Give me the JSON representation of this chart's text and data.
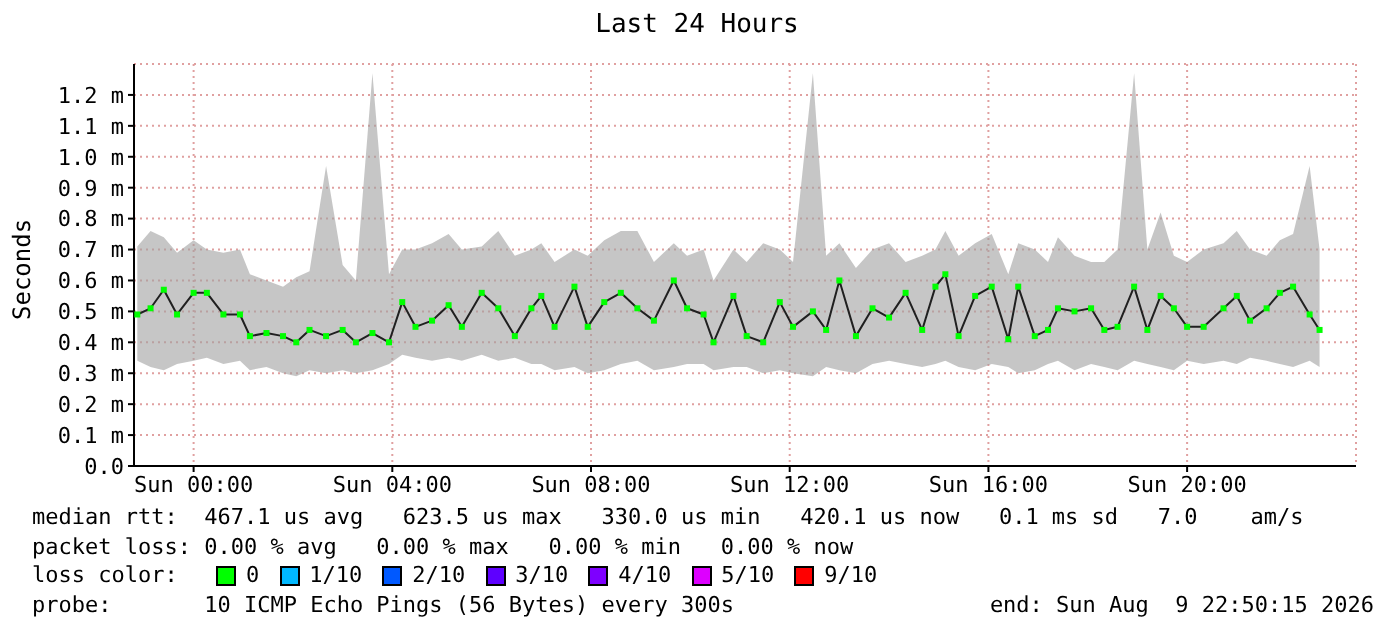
{
  "chart_data": {
    "type": "line",
    "title": "Last 24 Hours",
    "ylabel": "Seconds",
    "legend_title": "loss color:",
    "legend": "bottom",
    "grid": true,
    "marker": "square",
    "x": [
      "2026-08-08T22:52",
      "2026-08-08T23:08",
      "2026-08-08T23:24",
      "2026-08-08T23:40",
      "2026-08-09T00:00",
      "2026-08-09T00:16",
      "2026-08-09T00:36",
      "2026-08-09T00:56",
      "2026-08-09T01:08",
      "2026-08-09T01:28",
      "2026-08-09T01:48",
      "2026-08-09T02:04",
      "2026-08-09T02:20",
      "2026-08-09T02:40",
      "2026-08-09T03:00",
      "2026-08-09T03:16",
      "2026-08-09T03:36",
      "2026-08-09T03:56",
      "2026-08-09T04:12",
      "2026-08-09T04:28",
      "2026-08-09T04:48",
      "2026-08-09T05:08",
      "2026-08-09T05:24",
      "2026-08-09T05:48",
      "2026-08-09T06:08",
      "2026-08-09T06:28",
      "2026-08-09T06:48",
      "2026-08-09T07:00",
      "2026-08-09T07:16",
      "2026-08-09T07:40",
      "2026-08-09T07:56",
      "2026-08-09T08:16",
      "2026-08-09T08:36",
      "2026-08-09T08:56",
      "2026-08-09T09:16",
      "2026-08-09T09:40",
      "2026-08-09T09:56",
      "2026-08-09T10:16",
      "2026-08-09T10:28",
      "2026-08-09T10:52",
      "2026-08-09T11:08",
      "2026-08-09T11:28",
      "2026-08-09T11:48",
      "2026-08-09T12:04",
      "2026-08-09T12:28",
      "2026-08-09T12:44",
      "2026-08-09T13:00",
      "2026-08-09T13:20",
      "2026-08-09T13:40",
      "2026-08-09T14:00",
      "2026-08-09T14:20",
      "2026-08-09T14:40",
      "2026-08-09T14:56",
      "2026-08-09T15:08",
      "2026-08-09T15:24",
      "2026-08-09T15:44",
      "2026-08-09T16:04",
      "2026-08-09T16:24",
      "2026-08-09T16:36",
      "2026-08-09T16:56",
      "2026-08-09T17:12",
      "2026-08-09T17:24",
      "2026-08-09T17:44",
      "2026-08-09T18:04",
      "2026-08-09T18:20",
      "2026-08-09T18:36",
      "2026-08-09T18:56",
      "2026-08-09T19:12",
      "2026-08-09T19:28",
      "2026-08-09T19:44",
      "2026-08-09T20:00",
      "2026-08-09T20:20",
      "2026-08-09T20:44",
      "2026-08-09T21:00",
      "2026-08-09T21:16",
      "2026-08-09T21:36",
      "2026-08-09T21:52",
      "2026-08-09T22:08",
      "2026-08-09T22:28",
      "2026-08-09T22:40"
    ],
    "series": [
      {
        "name": "0",
        "color": "#00ff00",
        "values": [
          0.49,
          0.51,
          0.57,
          0.49,
          0.56,
          0.56,
          0.49,
          0.49,
          0.42,
          0.43,
          0.42,
          0.4,
          0.44,
          0.42,
          0.44,
          0.4,
          0.43,
          0.4,
          0.53,
          0.45,
          0.47,
          0.52,
          0.45,
          0.56,
          0.51,
          0.42,
          0.51,
          0.55,
          0.45,
          0.58,
          0.45,
          0.53,
          0.56,
          0.51,
          0.47,
          0.6,
          0.51,
          0.49,
          0.4,
          0.55,
          0.42,
          0.4,
          0.53,
          0.45,
          0.5,
          0.44,
          0.6,
          0.42,
          0.51,
          0.48,
          0.56,
          0.44,
          0.58,
          0.62,
          0.42,
          0.55,
          0.58,
          0.41,
          0.58,
          0.42,
          0.44,
          0.51,
          0.5,
          0.51,
          0.44,
          0.45,
          0.58,
          0.44,
          0.55,
          0.51,
          0.45,
          0.45,
          0.51,
          0.55,
          0.47,
          0.51,
          0.56,
          0.58,
          0.49,
          0.44
        ],
        "lower": [
          0.34,
          0.32,
          0.31,
          0.33,
          0.34,
          0.35,
          0.33,
          0.34,
          0.31,
          0.32,
          0.3,
          0.29,
          0.31,
          0.3,
          0.31,
          0.3,
          0.31,
          0.33,
          0.36,
          0.35,
          0.34,
          0.35,
          0.34,
          0.36,
          0.34,
          0.35,
          0.33,
          0.33,
          0.31,
          0.32,
          0.3,
          0.31,
          0.33,
          0.34,
          0.31,
          0.32,
          0.33,
          0.33,
          0.31,
          0.32,
          0.32,
          0.3,
          0.31,
          0.3,
          0.29,
          0.32,
          0.31,
          0.3,
          0.33,
          0.34,
          0.33,
          0.32,
          0.33,
          0.34,
          0.32,
          0.31,
          0.33,
          0.32,
          0.3,
          0.31,
          0.33,
          0.34,
          0.31,
          0.33,
          0.32,
          0.31,
          0.34,
          0.33,
          0.32,
          0.31,
          0.34,
          0.33,
          0.34,
          0.33,
          0.35,
          0.34,
          0.33,
          0.32,
          0.34,
          0.32
        ],
        "upper": [
          0.71,
          0.76,
          0.74,
          0.69,
          0.73,
          0.7,
          0.69,
          0.7,
          0.62,
          0.6,
          0.58,
          0.61,
          0.63,
          0.97,
          0.65,
          0.6,
          1.27,
          0.62,
          0.7,
          0.7,
          0.72,
          0.75,
          0.7,
          0.71,
          0.76,
          0.68,
          0.7,
          0.72,
          0.66,
          0.7,
          0.68,
          0.73,
          0.76,
          0.76,
          0.66,
          0.72,
          0.68,
          0.7,
          0.6,
          0.7,
          0.66,
          0.72,
          0.7,
          0.66,
          1.27,
          0.68,
          0.72,
          0.64,
          0.7,
          0.72,
          0.66,
          0.68,
          0.7,
          0.76,
          0.68,
          0.72,
          0.75,
          0.62,
          0.72,
          0.7,
          0.66,
          0.74,
          0.68,
          0.66,
          0.66,
          0.7,
          1.27,
          0.7,
          0.82,
          0.68,
          0.66,
          0.7,
          0.72,
          0.76,
          0.7,
          0.68,
          0.73,
          0.75,
          0.97,
          0.7
        ]
      },
      {
        "name": "1/10",
        "color": "#00b8ff",
        "values": [
          null,
          null,
          null,
          null,
          null,
          null,
          null,
          null,
          null,
          null,
          null,
          null,
          null,
          null,
          null,
          null,
          null,
          null,
          null,
          null,
          null,
          null,
          null,
          null,
          null,
          null,
          null,
          null,
          null,
          null,
          null,
          null,
          null,
          null,
          null,
          null,
          null,
          null,
          null,
          null,
          null,
          null,
          null,
          null,
          null,
          null,
          null,
          null,
          null,
          null,
          null,
          null,
          null,
          null,
          null,
          null,
          null,
          null,
          null,
          null,
          null,
          null,
          null,
          null,
          null,
          null,
          null,
          null,
          null,
          null,
          null,
          null,
          null,
          null,
          null,
          null,
          null,
          null,
          null,
          null
        ]
      },
      {
        "name": "2/10",
        "color": "#0059ff",
        "values": [
          null,
          null,
          null,
          null,
          null,
          null,
          null,
          null,
          null,
          null,
          null,
          null,
          null,
          null,
          null,
          null,
          null,
          null,
          null,
          null,
          null,
          null,
          null,
          null,
          null,
          null,
          null,
          null,
          null,
          null,
          null,
          null,
          null,
          null,
          null,
          null,
          null,
          null,
          null,
          null,
          null,
          null,
          null,
          null,
          null,
          null,
          null,
          null,
          null,
          null,
          null,
          null,
          null,
          null,
          null,
          null,
          null,
          null,
          null,
          null,
          null,
          null,
          null,
          null,
          null,
          null,
          null,
          null,
          null,
          null,
          null,
          null,
          null,
          null,
          null,
          null,
          null,
          null,
          null,
          null
        ]
      },
      {
        "name": "3/10",
        "color": "#5e00ff",
        "values": [
          null,
          null,
          null,
          null,
          null,
          null,
          null,
          null,
          null,
          null,
          null,
          null,
          null,
          null,
          null,
          null,
          null,
          null,
          null,
          null,
          null,
          null,
          null,
          null,
          null,
          null,
          null,
          null,
          null,
          null,
          null,
          null,
          null,
          null,
          null,
          null,
          null,
          null,
          null,
          null,
          null,
          null,
          null,
          null,
          null,
          null,
          null,
          null,
          null,
          null,
          null,
          null,
          null,
          null,
          null,
          null,
          null,
          null,
          null,
          null,
          null,
          null,
          null,
          null,
          null,
          null,
          null,
          null,
          null,
          null,
          null,
          null,
          null,
          null,
          null,
          null,
          null,
          null,
          null,
          null
        ]
      },
      {
        "name": "4/10",
        "color": "#7e00ff",
        "values": [
          null,
          null,
          null,
          null,
          null,
          null,
          null,
          null,
          null,
          null,
          null,
          null,
          null,
          null,
          null,
          null,
          null,
          null,
          null,
          null,
          null,
          null,
          null,
          null,
          null,
          null,
          null,
          null,
          null,
          null,
          null,
          null,
          null,
          null,
          null,
          null,
          null,
          null,
          null,
          null,
          null,
          null,
          null,
          null,
          null,
          null,
          null,
          null,
          null,
          null,
          null,
          null,
          null,
          null,
          null,
          null,
          null,
          null,
          null,
          null,
          null,
          null,
          null,
          null,
          null,
          null,
          null,
          null,
          null,
          null,
          null,
          null,
          null,
          null,
          null,
          null,
          null,
          null,
          null,
          null
        ]
      },
      {
        "name": "5/10",
        "color": "#dd00ff",
        "values": [
          null,
          null,
          null,
          null,
          null,
          null,
          null,
          null,
          null,
          null,
          null,
          null,
          null,
          null,
          null,
          null,
          null,
          null,
          null,
          null,
          null,
          null,
          null,
          null,
          null,
          null,
          null,
          null,
          null,
          null,
          null,
          null,
          null,
          null,
          null,
          null,
          null,
          null,
          null,
          null,
          null,
          null,
          null,
          null,
          null,
          null,
          null,
          null,
          null,
          null,
          null,
          null,
          null,
          null,
          null,
          null,
          null,
          null,
          null,
          null,
          null,
          null,
          null,
          null,
          null,
          null,
          null,
          null,
          null,
          null,
          null,
          null,
          null,
          null,
          null,
          null,
          null,
          null,
          null,
          null
        ]
      },
      {
        "name": "9/10",
        "color": "#ff0000",
        "values": [
          null,
          null,
          null,
          null,
          null,
          null,
          null,
          null,
          null,
          null,
          null,
          null,
          null,
          null,
          null,
          null,
          null,
          null,
          null,
          null,
          null,
          null,
          null,
          null,
          null,
          null,
          null,
          null,
          null,
          null,
          null,
          null,
          null,
          null,
          null,
          null,
          null,
          null,
          null,
          null,
          null,
          null,
          null,
          null,
          null,
          null,
          null,
          null,
          null,
          null,
          null,
          null,
          null,
          null,
          null,
          null,
          null,
          null,
          null,
          null,
          null,
          null,
          null,
          null,
          null,
          null,
          null,
          null,
          null,
          null,
          null,
          null,
          null,
          null,
          null,
          null,
          null,
          null,
          null,
          null
        ]
      }
    ],
    "xlim": [
      "2026-08-08T22:48",
      "2026-08-09T23:24"
    ],
    "xticks": [
      {
        "value": "2026-08-09T00:00",
        "label": "Sun 00:00"
      },
      {
        "value": "2026-08-09T04:00",
        "label": "Sun 04:00"
      },
      {
        "value": "2026-08-09T08:00",
        "label": "Sun 08:00"
      },
      {
        "value": "2026-08-09T12:00",
        "label": "Sun 12:00"
      },
      {
        "value": "2026-08-09T16:00",
        "label": "Sun 16:00"
      },
      {
        "value": "2026-08-09T20:00",
        "label": "Sun 20:00"
      }
    ],
    "ylim": [
      0,
      1.3
    ],
    "yticks": [
      {
        "value": 0,
        "label": "0.0"
      },
      {
        "value": 0.1,
        "label": "0.1 m"
      },
      {
        "value": 0.2,
        "label": "0.2 m"
      },
      {
        "value": 0.3,
        "label": "0.3 m"
      },
      {
        "value": 0.4,
        "label": "0.4 m"
      },
      {
        "value": 0.5,
        "label": "0.5 m"
      },
      {
        "value": 0.6,
        "label": "0.6 m"
      },
      {
        "value": 0.7,
        "label": "0.7 m"
      },
      {
        "value": 0.8,
        "label": "0.8 m"
      },
      {
        "value": 0.9,
        "label": "0.9 m"
      },
      {
        "value": 1.0,
        "label": "1.0 m"
      },
      {
        "value": 1.1,
        "label": "1.1 m"
      },
      {
        "value": 1.2,
        "label": "1.2 m"
      }
    ],
    "annotations": [
      "median rtt:  467.1 us avg   623.5 us max   330.0 us min   420.1 us now   0.1 ms sd   7.0    am/s",
      "packet loss: 0.00 % avg   0.00 % max   0.00 % min   0.00 % now",
      "probe:       10 ICMP Echo Pings (56 Bytes) every 300s",
      "end: Sun Aug  9 22:50:15 2026"
    ]
  }
}
